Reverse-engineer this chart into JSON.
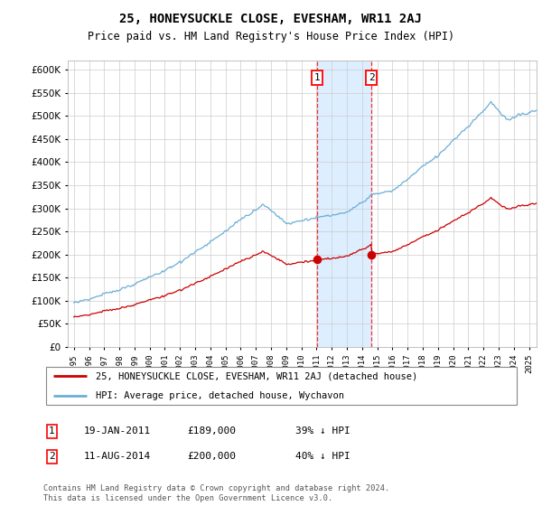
{
  "title": "25, HONEYSUCKLE CLOSE, EVESHAM, WR11 2AJ",
  "subtitle": "Price paid vs. HM Land Registry's House Price Index (HPI)",
  "legend_line1": "25, HONEYSUCKLE CLOSE, EVESHAM, WR11 2AJ (detached house)",
  "legend_line2": "HPI: Average price, detached house, Wychavon",
  "footnote": "Contains HM Land Registry data © Crown copyright and database right 2024.\nThis data is licensed under the Open Government Licence v3.0.",
  "sale1_date": "19-JAN-2011",
  "sale1_price": "£189,000",
  "sale1_hpi": "39% ↓ HPI",
  "sale2_date": "11-AUG-2014",
  "sale2_price": "£200,000",
  "sale2_hpi": "40% ↓ HPI",
  "hpi_color": "#6baed6",
  "price_color": "#cc0000",
  "highlight_color": "#ddeeff",
  "sale1_x": 2011.05,
  "sale2_x": 2014.62,
  "sale1_y": 189000,
  "sale2_y": 200000,
  "ylim_min": 0,
  "ylim_max": 620000,
  "xlim_min": 1994.6,
  "xlim_max": 2025.5,
  "yticks": [
    0,
    50000,
    100000,
    150000,
    200000,
    250000,
    300000,
    350000,
    400000,
    450000,
    500000,
    550000,
    600000
  ],
  "xticks": [
    1995,
    1996,
    1997,
    1998,
    1999,
    2000,
    2001,
    2002,
    2003,
    2004,
    2005,
    2006,
    2007,
    2008,
    2009,
    2010,
    2011,
    2012,
    2013,
    2014,
    2015,
    2016,
    2017,
    2018,
    2019,
    2020,
    2021,
    2022,
    2023,
    2024,
    2025
  ]
}
